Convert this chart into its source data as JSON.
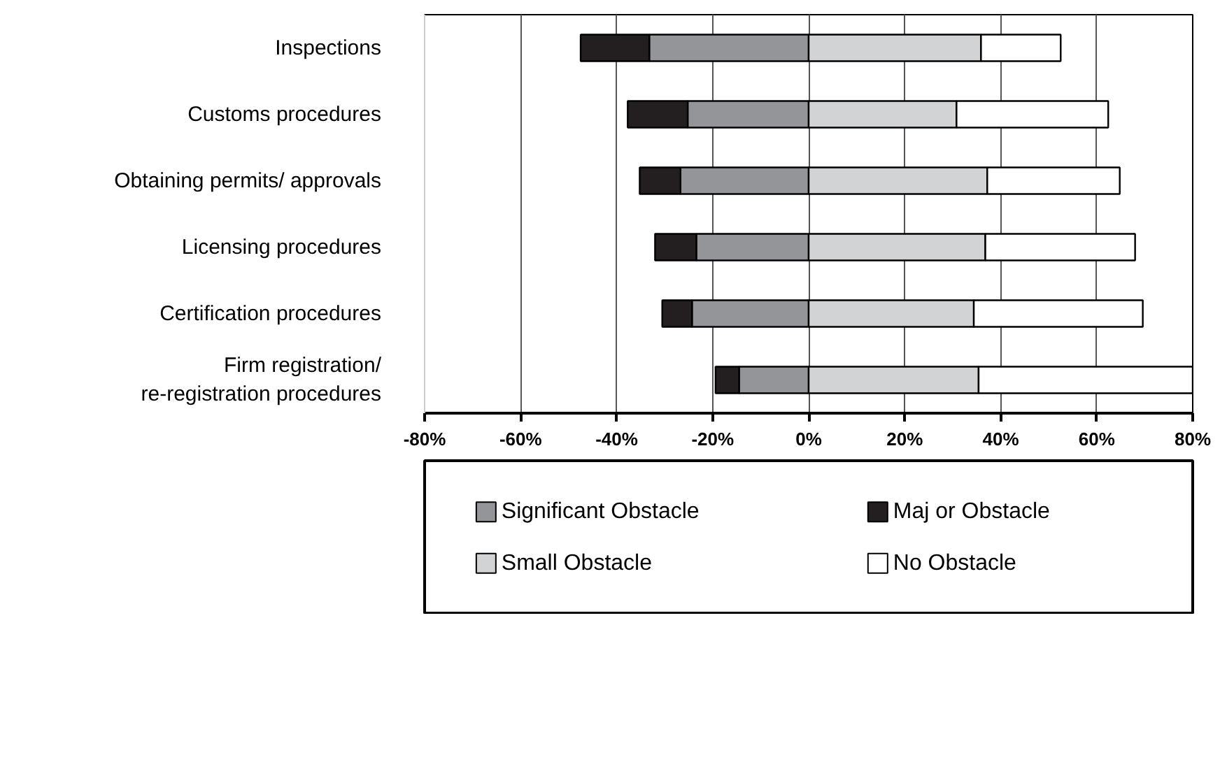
{
  "chart_data": {
    "type": "bar",
    "orientation": "horizontal",
    "stacked": true,
    "categories": [
      "Inspections",
      "Customs procedures",
      "Obtaining permits/ approvals",
      "Licensing procedures",
      "Certification procedures",
      "Firm registration/\nre-registration procedures"
    ],
    "series": [
      {
        "name": "Significant Obstacle",
        "color": "#939598",
        "values": [
          -33.2,
          -25.2,
          -26.7,
          -23.4,
          -24.3,
          -14.5
        ]
      },
      {
        "name": "Maj or Obstacle",
        "color": "#231f20",
        "values": [
          -14.3,
          -12.5,
          -8.5,
          -8.6,
          -6.2,
          -4.9
        ]
      },
      {
        "name": "Small Obstacle",
        "color": "#d1d3d4",
        "values": [
          35.9,
          30.8,
          37.2,
          36.8,
          34.4,
          35.4
        ]
      },
      {
        "name": "No Obstacle",
        "color": "#ffffff",
        "values": [
          16.6,
          31.6,
          27.6,
          31.2,
          35.2,
          44.6
        ]
      }
    ],
    "xlim": [
      -80,
      80
    ],
    "xticks": [
      {
        "value": -80,
        "label": "-80%"
      },
      {
        "value": -60,
        "label": "-60%"
      },
      {
        "value": -40,
        "label": "-40%"
      },
      {
        "value": -20,
        "label": "-20%"
      },
      {
        "value": 0,
        "label": "0%"
      },
      {
        "value": 20,
        "label": "20%"
      },
      {
        "value": 40,
        "label": "40%"
      },
      {
        "value": 60,
        "label": "60%"
      },
      {
        "value": 80,
        "label": "80%"
      }
    ],
    "grid": "x",
    "legend": "bottom"
  }
}
